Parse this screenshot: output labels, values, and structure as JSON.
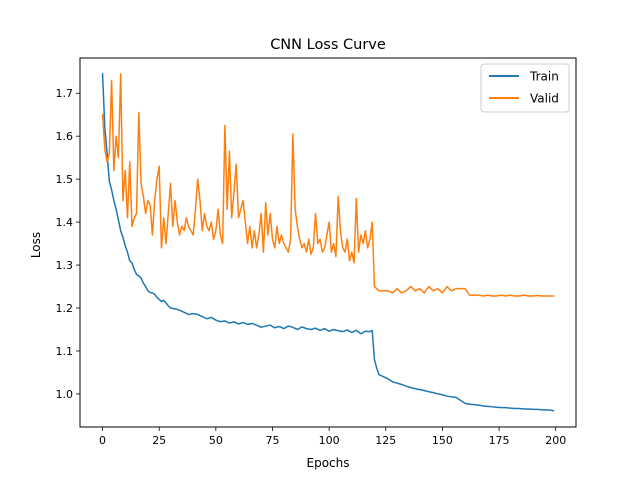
{
  "chart_data": {
    "type": "line",
    "title": "CNN Loss Curve",
    "xlabel": "Epochs",
    "ylabel": "Loss",
    "xlim": [
      -9.95,
      208.95
    ],
    "ylim": [
      0.923,
      1.782
    ],
    "xticks": [
      0,
      25,
      50,
      75,
      100,
      125,
      150,
      175,
      200
    ],
    "yticks": [
      1.0,
      1.1,
      1.2,
      1.3,
      1.4,
      1.5,
      1.6,
      1.7
    ],
    "grid": false,
    "legend_position": "top-right",
    "series": [
      {
        "name": "Train",
        "color": "#1f77b4",
        "x": [
          0,
          1,
          2,
          3,
          4,
          5,
          6,
          7,
          8,
          9,
          10,
          11,
          12,
          13,
          14,
          15,
          16,
          17,
          18,
          19,
          20,
          21,
          22,
          23,
          24,
          25,
          26,
          27,
          28,
          29,
          30,
          32,
          34,
          36,
          38,
          40,
          42,
          44,
          46,
          48,
          50,
          52,
          54,
          56,
          58,
          60,
          62,
          64,
          66,
          68,
          70,
          72,
          74,
          76,
          78,
          80,
          82,
          84,
          86,
          88,
          90,
          92,
          94,
          96,
          98,
          100,
          102,
          104,
          106,
          108,
          110,
          112,
          114,
          116,
          118,
          119,
          120,
          121,
          122,
          124,
          126,
          128,
          130,
          132,
          134,
          136,
          138,
          140,
          142,
          144,
          146,
          148,
          150,
          152,
          154,
          156,
          158,
          160,
          162,
          164,
          166,
          168,
          170,
          172,
          174,
          176,
          178,
          180,
          182,
          184,
          186,
          188,
          190,
          192,
          194,
          196,
          198,
          199
        ],
        "values": [
          1.745,
          1.62,
          1.56,
          1.495,
          1.475,
          1.45,
          1.43,
          1.405,
          1.38,
          1.365,
          1.345,
          1.33,
          1.31,
          1.305,
          1.29,
          1.278,
          1.275,
          1.27,
          1.258,
          1.25,
          1.24,
          1.236,
          1.235,
          1.232,
          1.225,
          1.22,
          1.215,
          1.218,
          1.212,
          1.205,
          1.2,
          1.198,
          1.195,
          1.19,
          1.185,
          1.187,
          1.185,
          1.18,
          1.175,
          1.178,
          1.172,
          1.168,
          1.17,
          1.165,
          1.168,
          1.163,
          1.166,
          1.162,
          1.164,
          1.16,
          1.155,
          1.158,
          1.16,
          1.154,
          1.157,
          1.152,
          1.158,
          1.155,
          1.15,
          1.156,
          1.152,
          1.15,
          1.153,
          1.148,
          1.152,
          1.146,
          1.15,
          1.147,
          1.145,
          1.149,
          1.143,
          1.148,
          1.14,
          1.146,
          1.145,
          1.148,
          1.08,
          1.06,
          1.045,
          1.04,
          1.035,
          1.028,
          1.025,
          1.022,
          1.018,
          1.015,
          1.012,
          1.01,
          1.008,
          1.005,
          1.003,
          1.0,
          0.998,
          0.995,
          0.993,
          0.992,
          0.985,
          0.978,
          0.976,
          0.975,
          0.974,
          0.972,
          0.971,
          0.97,
          0.969,
          0.968,
          0.968,
          0.967,
          0.966,
          0.966,
          0.965,
          0.965,
          0.964,
          0.964,
          0.963,
          0.963,
          0.962,
          0.961
        ]
      },
      {
        "name": "Valid",
        "color": "#ff7f0e",
        "x": [
          0,
          1,
          2,
          3,
          4,
          5,
          6,
          7,
          8,
          9,
          10,
          11,
          12,
          13,
          14,
          15,
          16,
          17,
          18,
          19,
          20,
          21,
          22,
          23,
          24,
          25,
          26,
          27,
          28,
          29,
          30,
          31,
          32,
          33,
          34,
          35,
          36,
          37,
          38,
          39,
          40,
          41,
          42,
          43,
          44,
          45,
          46,
          47,
          48,
          49,
          50,
          51,
          52,
          53,
          54,
          55,
          56,
          57,
          58,
          59,
          60,
          61,
          62,
          63,
          64,
          65,
          66,
          67,
          68,
          69,
          70,
          71,
          72,
          73,
          74,
          75,
          76,
          77,
          78,
          79,
          80,
          81,
          82,
          83,
          84,
          85,
          86,
          87,
          88,
          89,
          90,
          91,
          92,
          93,
          94,
          95,
          96,
          97,
          98,
          99,
          100,
          101,
          102,
          103,
          104,
          105,
          106,
          107,
          108,
          109,
          110,
          111,
          112,
          113,
          114,
          115,
          116,
          117,
          118,
          119,
          120,
          122,
          124,
          126,
          128,
          130,
          132,
          134,
          136,
          138,
          140,
          142,
          144,
          146,
          148,
          150,
          152,
          154,
          156,
          158,
          160,
          162,
          164,
          166,
          168,
          170,
          172,
          174,
          176,
          178,
          180,
          182,
          184,
          186,
          188,
          190,
          192,
          194,
          196,
          198,
          199
        ],
        "values": [
          1.65,
          1.57,
          1.54,
          1.56,
          1.73,
          1.52,
          1.6,
          1.55,
          1.745,
          1.45,
          1.52,
          1.41,
          1.54,
          1.39,
          1.41,
          1.42,
          1.655,
          1.49,
          1.46,
          1.42,
          1.45,
          1.44,
          1.37,
          1.45,
          1.5,
          1.53,
          1.34,
          1.41,
          1.35,
          1.42,
          1.49,
          1.39,
          1.45,
          1.4,
          1.37,
          1.39,
          1.38,
          1.41,
          1.39,
          1.38,
          1.37,
          1.43,
          1.5,
          1.45,
          1.38,
          1.42,
          1.39,
          1.38,
          1.4,
          1.36,
          1.38,
          1.43,
          1.37,
          1.35,
          1.625,
          1.43,
          1.565,
          1.41,
          1.47,
          1.535,
          1.41,
          1.43,
          1.45,
          1.4,
          1.35,
          1.39,
          1.34,
          1.38,
          1.34,
          1.37,
          1.42,
          1.33,
          1.445,
          1.37,
          1.42,
          1.36,
          1.34,
          1.39,
          1.35,
          1.37,
          1.35,
          1.34,
          1.33,
          1.36,
          1.605,
          1.43,
          1.39,
          1.36,
          1.34,
          1.35,
          1.33,
          1.36,
          1.325,
          1.34,
          1.42,
          1.35,
          1.36,
          1.33,
          1.34,
          1.37,
          1.4,
          1.33,
          1.35,
          1.32,
          1.46,
          1.38,
          1.34,
          1.33,
          1.36,
          1.31,
          1.33,
          1.305,
          1.455,
          1.33,
          1.37,
          1.35,
          1.38,
          1.34,
          1.36,
          1.4,
          1.25,
          1.24,
          1.24,
          1.24,
          1.235,
          1.245,
          1.235,
          1.24,
          1.25,
          1.24,
          1.245,
          1.235,
          1.25,
          1.24,
          1.245,
          1.235,
          1.25,
          1.24,
          1.245,
          1.245,
          1.245,
          1.23,
          1.23,
          1.23,
          1.228,
          1.23,
          1.228,
          1.228,
          1.23,
          1.228,
          1.23,
          1.228,
          1.228,
          1.23,
          1.228,
          1.228,
          1.229,
          1.228,
          1.228,
          1.228,
          1.228
        ]
      }
    ]
  }
}
